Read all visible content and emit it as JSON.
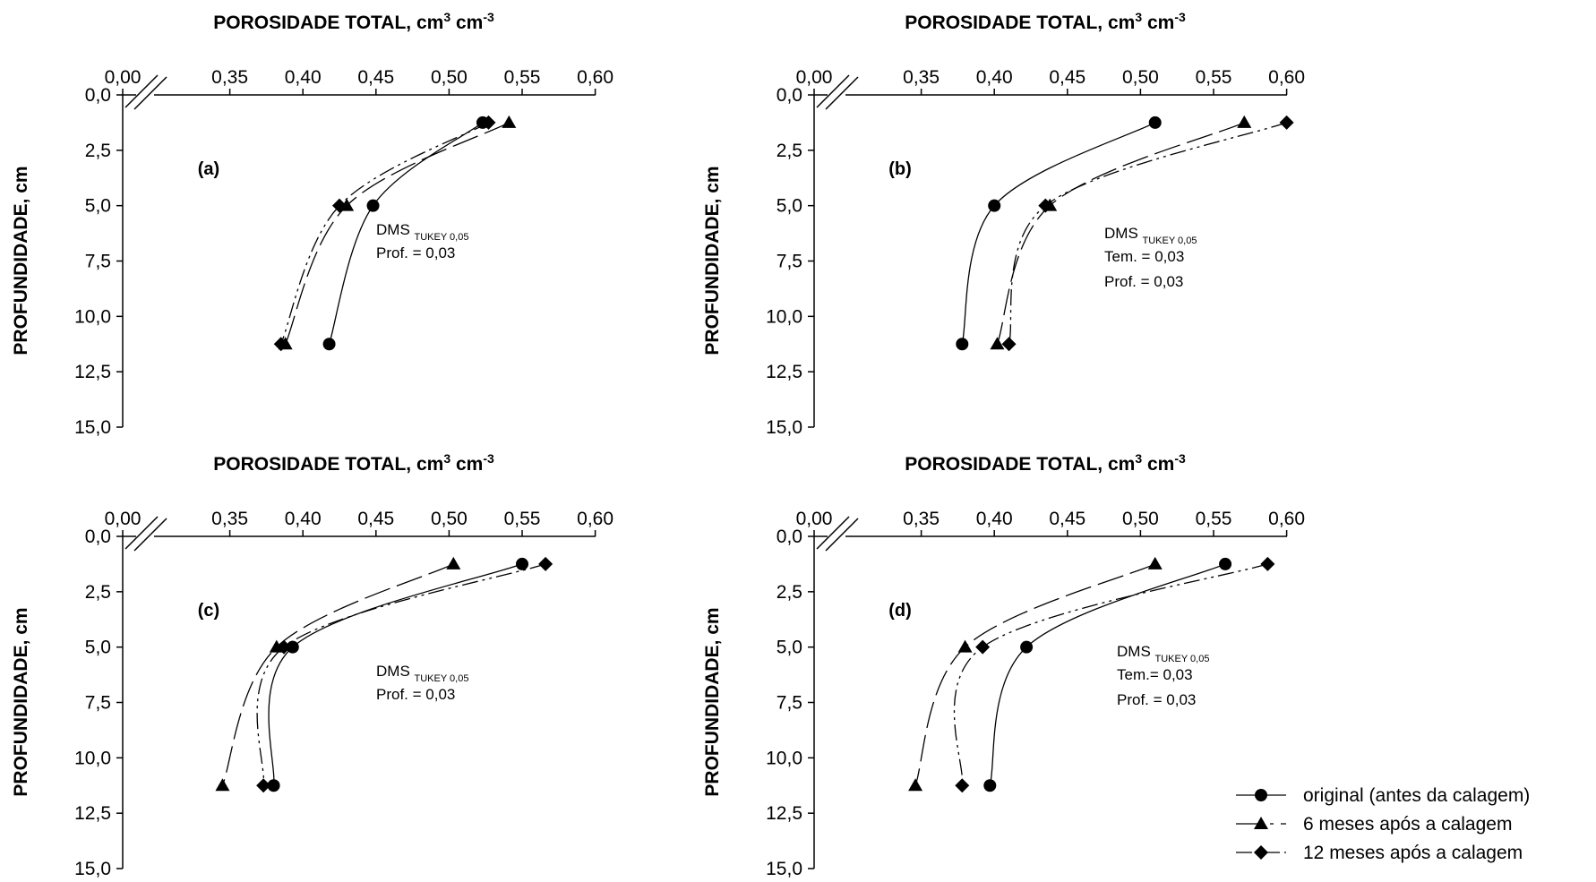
{
  "chart_data": [
    {
      "type": "line",
      "panel_label": "(a)",
      "title": "POROSIDADE TOTAL, cm³ cm⁻³",
      "xlabel": "POROSIDADE TOTAL, cm³ cm⁻³",
      "ylabel": "PROFUNDIDADE, cm",
      "x_axis_position": "top",
      "y_reversed": true,
      "xlim": [
        0.3,
        0.6
      ],
      "ylim": [
        0,
        15
      ],
      "axis_break": "between 0,00 and 0,35",
      "x_ticks": [
        "0,00",
        "0,35",
        "0,40",
        "0,45",
        "0,50",
        "0,55",
        "0,60"
      ],
      "y_ticks": [
        "0,0",
        "2,5",
        "5,0",
        "7,5",
        "10,0",
        "12,5",
        "15,0"
      ],
      "series": [
        {
          "name": "original (antes da calagem)",
          "marker": "circle",
          "line": "solid",
          "x": [
            0.523,
            0.448,
            0.418
          ],
          "y": [
            1.25,
            5.0,
            11.25
          ]
        },
        {
          "name": "6 meses após a calagem",
          "marker": "triangle",
          "line": "long-dash",
          "x": [
            0.541,
            0.43,
            0.388
          ],
          "y": [
            1.25,
            5.0,
            11.25
          ]
        },
        {
          "name": "12 meses após a calagem",
          "marker": "diamond",
          "line": "dash-dot-dot",
          "x": [
            0.527,
            0.425,
            0.385
          ],
          "y": [
            1.25,
            5.0,
            11.25
          ]
        }
      ],
      "annotation": {
        "dms": "DMS",
        "sub": "TUKEY 0,05",
        "lines": [
          "Prof. = 0,03"
        ]
      }
    },
    {
      "type": "line",
      "panel_label": "(b)",
      "title": "POROSIDADE TOTAL, cm³ cm⁻³",
      "xlabel": "POROSIDADE TOTAL, cm³ cm⁻³",
      "ylabel": "PROFUNDIDADE, cm",
      "x_axis_position": "top",
      "y_reversed": true,
      "xlim": [
        0.3,
        0.6
      ],
      "ylim": [
        0,
        15
      ],
      "axis_break": "between 0,00 and 0,35",
      "x_ticks": [
        "0,00",
        "0,35",
        "0,40",
        "0,45",
        "0,50",
        "0,55",
        "0,60"
      ],
      "y_ticks": [
        "0,0",
        "2,5",
        "5,0",
        "7,5",
        "10,0",
        "12,5",
        "15,0"
      ],
      "series": [
        {
          "name": "original (antes da calagem)",
          "marker": "circle",
          "line": "solid",
          "x": [
            0.51,
            0.4,
            0.378
          ],
          "y": [
            1.25,
            5.0,
            11.25
          ]
        },
        {
          "name": "6 meses após a calagem",
          "marker": "triangle",
          "line": "long-dash",
          "x": [
            0.571,
            0.438,
            0.402
          ],
          "y": [
            1.25,
            5.0,
            11.25
          ]
        },
        {
          "name": "12 meses após a calagem",
          "marker": "diamond",
          "line": "dash-dot-dot",
          "x": [
            0.6,
            0.435,
            0.41
          ],
          "y": [
            1.25,
            5.0,
            11.25
          ]
        }
      ],
      "annotation": {
        "dms": "DMS",
        "sub": "TUKEY 0,05",
        "lines": [
          "Tem. = 0,03",
          "Prof. = 0,03"
        ]
      }
    },
    {
      "type": "line",
      "panel_label": "(c)",
      "title": "POROSIDADE TOTAL, cm³ cm⁻³",
      "xlabel": "POROSIDADE TOTAL, cm³ cm⁻³",
      "ylabel": "PROFUNDIDADE, cm",
      "x_axis_position": "top",
      "y_reversed": true,
      "xlim": [
        0.3,
        0.6
      ],
      "ylim": [
        0,
        15
      ],
      "axis_break": "between 0,00 and 0,35",
      "x_ticks": [
        "0,00",
        "0,35",
        "0,40",
        "0,45",
        "0,50",
        "0,55",
        "0,60"
      ],
      "y_ticks": [
        "0,0",
        "2,5",
        "5,0",
        "7,5",
        "10,0",
        "12,5",
        "15,0"
      ],
      "series": [
        {
          "name": "original (antes da calagem)",
          "marker": "circle",
          "line": "solid",
          "x": [
            0.55,
            0.393,
            0.38
          ],
          "y": [
            1.25,
            5.0,
            11.25
          ]
        },
        {
          "name": "6 meses após a calagem",
          "marker": "triangle",
          "line": "long-dash",
          "x": [
            0.503,
            0.382,
            0.345
          ],
          "y": [
            1.25,
            5.0,
            11.25
          ]
        },
        {
          "name": "12 meses após a calagem",
          "marker": "diamond",
          "line": "dash-dot-dot",
          "x": [
            0.566,
            0.387,
            0.373
          ],
          "y": [
            1.25,
            5.0,
            11.25
          ]
        }
      ],
      "annotation": {
        "dms": "DMS",
        "sub": "TUKEY 0,05",
        "lines": [
          "Prof. = 0,03"
        ]
      }
    },
    {
      "type": "line",
      "panel_label": "(d)",
      "title": "POROSIDADE TOTAL, cm³ cm⁻³",
      "xlabel": "POROSIDADE TOTAL, cm³ cm⁻³",
      "ylabel": "PROFUNDIDADE, cm",
      "x_axis_position": "top",
      "y_reversed": true,
      "xlim": [
        0.3,
        0.6
      ],
      "ylim": [
        0,
        15
      ],
      "axis_break": "between 0,00 and 0,35",
      "x_ticks": [
        "0,00",
        "0,35",
        "0,40",
        "0,45",
        "0,50",
        "0,55",
        "0,60"
      ],
      "y_ticks": [
        "0,0",
        "2,5",
        "5,0",
        "7,5",
        "10,0",
        "12,5",
        "15,0"
      ],
      "series": [
        {
          "name": "original (antes da calagem)",
          "marker": "circle",
          "line": "solid",
          "x": [
            0.558,
            0.422,
            0.397
          ],
          "y": [
            1.25,
            5.0,
            11.25
          ]
        },
        {
          "name": "6 meses após a calagem",
          "marker": "triangle",
          "line": "long-dash",
          "x": [
            0.51,
            0.38,
            0.346
          ],
          "y": [
            1.25,
            5.0,
            11.25
          ]
        },
        {
          "name": "12 meses após a calagem",
          "marker": "diamond",
          "line": "dash-dot-dot",
          "x": [
            0.587,
            0.392,
            0.378
          ],
          "y": [
            1.25,
            5.0,
            11.25
          ]
        }
      ],
      "annotation": {
        "dms": "DMS",
        "sub": "TUKEY 0,05",
        "lines": [
          "Tem.= 0,03",
          "Prof. = 0,03"
        ]
      }
    }
  ],
  "legend": {
    "placement": "bottom-right",
    "items": [
      {
        "label": "original (antes da calagem)",
        "marker": "circle",
        "line": "solid"
      },
      {
        "label": "6 meses após a calagem",
        "marker": "triangle",
        "line": "long-dash"
      },
      {
        "label": "12 meses após a calagem",
        "marker": "diamond",
        "line": "dash-dot-dot"
      }
    ]
  },
  "colors": {
    "ink": "#000000",
    "background": "#ffffff"
  }
}
